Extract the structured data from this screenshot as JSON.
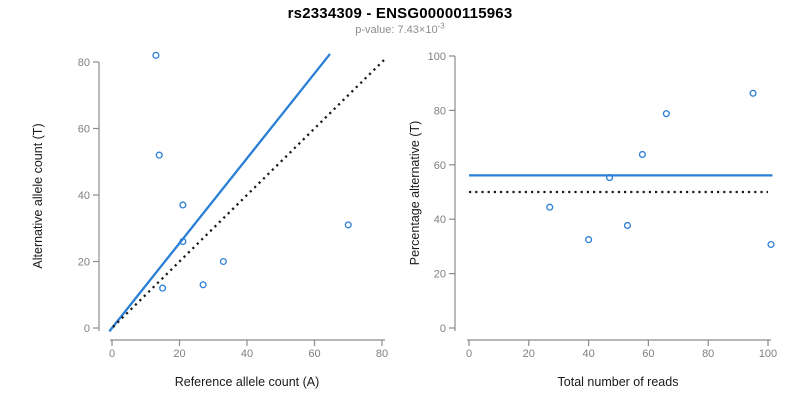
{
  "header": {
    "title": "rs2334309 - ENSG00000115963",
    "pvalue_label": "p-value: ",
    "pvalue_mantissa": "7.43",
    "pvalue_multiplier": "×",
    "pvalue_base": "10",
    "pvalue_exponent": "-3"
  },
  "colors": {
    "accent_blue": "#2A7FD6",
    "axis_gray": "#8C8C8C",
    "tick_label_gray": "#808080",
    "label_black": "#1A1A1A",
    "dotted_black": "#1A1A1A",
    "subtitle_gray": "#8C8C8C"
  },
  "chart_data": [
    {
      "type": "scatter",
      "panel": "left",
      "xlabel": "Reference allele count (A)",
      "ylabel": "Alternative allele count (T)",
      "xlim": [
        0,
        80
      ],
      "ylim": [
        0,
        80
      ],
      "xticks": [
        0,
        20,
        40,
        60,
        80
      ],
      "yticks": [
        0,
        20,
        40,
        60,
        80
      ],
      "grid": false,
      "marker": "open-circle",
      "points": [
        [
          13,
          82
        ],
        [
          14,
          52
        ],
        [
          21,
          37
        ],
        [
          21,
          26
        ],
        [
          15,
          12
        ],
        [
          27,
          13
        ],
        [
          33,
          20
        ],
        [
          70,
          31
        ]
      ],
      "lines": [
        {
          "name": "fit-line",
          "style": "solid",
          "color": "accent_blue",
          "slope": 1.276,
          "intercept": 0,
          "x_range": [
            -0.8,
            64.6
          ]
        },
        {
          "name": "identity-line",
          "style": "dotted",
          "color": "dotted_black",
          "slope": 1,
          "intercept": 0,
          "x_range": [
            0.3,
            81
          ]
        }
      ]
    },
    {
      "type": "scatter",
      "panel": "right",
      "xlabel": "Total number of reads",
      "ylabel": "Percentage alternative (T)",
      "xlim": [
        0,
        100
      ],
      "ylim": [
        0,
        100
      ],
      "xticks": [
        0,
        20,
        40,
        60,
        80,
        100
      ],
      "yticks": [
        0,
        20,
        40,
        60,
        80,
        100
      ],
      "grid": false,
      "marker": "open-circle",
      "points": [
        [
          27,
          44.4
        ],
        [
          40,
          32.5
        ],
        [
          47,
          55.3
        ],
        [
          53,
          37.7
        ],
        [
          58,
          63.8
        ],
        [
          66,
          78.8
        ],
        [
          95,
          86.3
        ],
        [
          101,
          30.7
        ]
      ],
      "lines": [
        {
          "name": "mean-percentage-line",
          "style": "solid",
          "color": "accent_blue",
          "y": 56.1,
          "x_range": [
            0,
            101.5
          ]
        },
        {
          "name": "null-50-percent-line",
          "style": "dotted",
          "color": "dotted_black",
          "y": 50,
          "x_range": [
            0,
            100
          ]
        }
      ]
    }
  ]
}
